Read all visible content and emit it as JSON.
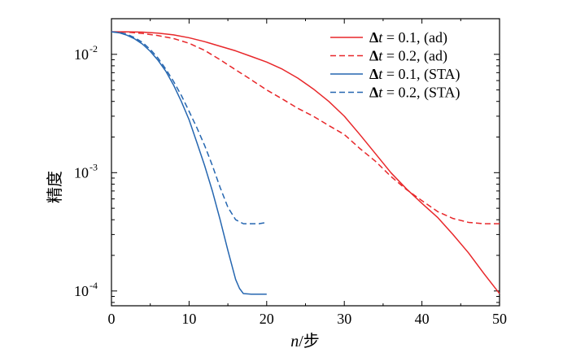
{
  "chart_data": {
    "type": "line",
    "xlabel": "n/步",
    "ylabel": "精度",
    "xlim": [
      0,
      50
    ],
    "ylim": [
      7.5e-05,
      0.02
    ],
    "yscale": "log",
    "x_ticks": [
      0,
      10,
      20,
      30,
      40,
      50
    ],
    "y_ticks": [
      {
        "value": 0.01,
        "base": "10",
        "exp": "-2"
      },
      {
        "value": 0.001,
        "base": "10",
        "exp": "-3"
      },
      {
        "value": 0.0001,
        "base": "10",
        "exp": "-4"
      }
    ],
    "grid": false,
    "legend_position": "top-right",
    "series": [
      {
        "name": "Δt = 0.1, (ad)",
        "color": "#e8272a",
        "dash": "solid",
        "x": [
          0,
          2,
          4,
          6,
          8,
          10,
          12,
          14,
          16,
          18,
          20,
          22,
          24,
          26,
          28,
          30,
          32,
          34,
          36,
          38,
          40,
          42,
          44,
          46,
          48,
          50
        ],
        "y": [
          0.0155,
          0.0155,
          0.0154,
          0.0151,
          0.0146,
          0.0138,
          0.0128,
          0.0117,
          0.0107,
          0.0096,
          0.0086,
          0.0075,
          0.0063,
          0.0051,
          0.004,
          0.003,
          0.0021,
          0.00145,
          0.001,
          0.00073,
          0.00055,
          0.00042,
          0.0003,
          0.00021,
          0.00014,
          9.5e-05
        ]
      },
      {
        "name": "Δt = 0.2, (ad)",
        "color": "#e8272a",
        "dash": "dashed",
        "x": [
          0,
          2,
          4,
          6,
          8,
          10,
          12,
          14,
          16,
          18,
          20,
          22,
          24,
          26,
          28,
          30,
          32,
          34,
          36,
          38,
          40,
          42,
          44,
          46,
          48,
          50
        ],
        "y": [
          0.0155,
          0.0154,
          0.015,
          0.0144,
          0.0136,
          0.0124,
          0.0108,
          0.009,
          0.0074,
          0.0061,
          0.005,
          0.0042,
          0.0035,
          0.003,
          0.0025,
          0.0021,
          0.0016,
          0.00125,
          0.00093,
          0.00072,
          0.00058,
          0.00047,
          0.00041,
          0.00038,
          0.00037,
          0.00037
        ]
      },
      {
        "name": "Δt = 0.1, (STA)",
        "color": "#2566b0",
        "dash": "solid",
        "x": [
          0,
          1,
          2,
          3,
          4,
          5,
          6,
          7,
          8,
          9,
          10,
          11,
          12,
          13,
          14,
          15,
          16,
          16.5,
          17,
          18,
          19,
          20
        ],
        "y": [
          0.0155,
          0.0152,
          0.0145,
          0.0135,
          0.0122,
          0.0106,
          0.0089,
          0.0072,
          0.0055,
          0.004,
          0.0028,
          0.0018,
          0.00115,
          0.0007,
          0.0004,
          0.00022,
          0.000125,
          0.000105,
          9.5e-05,
          9.4e-05,
          9.4e-05,
          9.4e-05
        ]
      },
      {
        "name": "Δt = 0.2, (STA)",
        "color": "#2566b0",
        "dash": "dashed",
        "x": [
          0,
          1,
          2,
          3,
          4,
          5,
          6,
          7,
          8,
          9,
          10,
          11,
          12,
          13,
          14,
          15,
          16,
          17,
          18,
          19,
          20
        ],
        "y": [
          0.0155,
          0.0153,
          0.0148,
          0.0138,
          0.0126,
          0.011,
          0.0093,
          0.0075,
          0.0059,
          0.0045,
          0.0033,
          0.0024,
          0.0017,
          0.00115,
          0.00075,
          0.00051,
          0.0004,
          0.00037,
          0.00037,
          0.00037,
          0.00038
        ]
      }
    ]
  }
}
